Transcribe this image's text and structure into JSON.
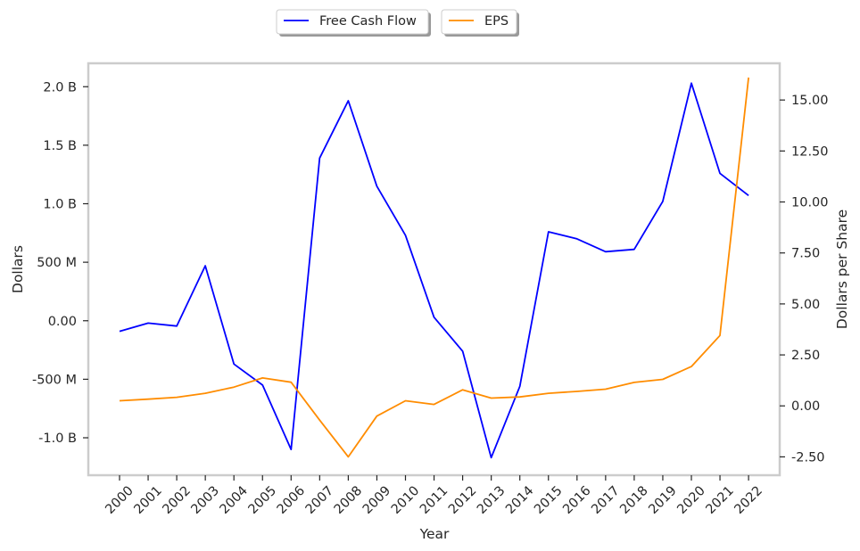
{
  "chart_data": {
    "type": "line",
    "x": [
      "2000",
      "2001",
      "2002",
      "2003",
      "2004",
      "2005",
      "2006",
      "2007",
      "2008",
      "2009",
      "2010",
      "2011",
      "2012",
      "2013",
      "2014",
      "2015",
      "2016",
      "2017",
      "2018",
      "2019",
      "2020",
      "2021",
      "2022"
    ],
    "xlabel": "Year",
    "ylabel_left": "Dollars",
    "ylabel_right": "Dollars per Share",
    "y_left_ticks": [
      {
        "value": -1000000000,
        "label": "-1.0 B"
      },
      {
        "value": -500000000,
        "label": "-500 M"
      },
      {
        "value": 0,
        "label": "0.00"
      },
      {
        "value": 500000000,
        "label": "500 M"
      },
      {
        "value": 1000000000,
        "label": "1.0 B"
      },
      {
        "value": 1500000000,
        "label": "1.5 B"
      },
      {
        "value": 2000000000,
        "label": "2.0 B"
      }
    ],
    "y_right_ticks": [
      {
        "value": -2.5,
        "label": "-2.50"
      },
      {
        "value": 0,
        "label": "0.00"
      },
      {
        "value": 2.5,
        "label": "2.50"
      },
      {
        "value": 5,
        "label": "5.00"
      },
      {
        "value": 7.5,
        "label": "7.50"
      },
      {
        "value": 10,
        "label": "10.00"
      },
      {
        "value": 12.5,
        "label": "12.50"
      },
      {
        "value": 15,
        "label": "15.00"
      }
    ],
    "ylim_left": [
      -1320000000,
      2200000000
    ],
    "ylim_right": [
      -3.4,
      16.8
    ],
    "legend_position": "top-center",
    "grid": false,
    "series": [
      {
        "name": "Free Cash Flow",
        "axis": "left",
        "color": "#0000ff",
        "values": [
          -90000000,
          -20000000,
          -45000000,
          470000000,
          -370000000,
          -550000000,
          -1100000000,
          1390000000,
          1880000000,
          1150000000,
          730000000,
          30000000,
          -260000000,
          -1170000000,
          -560000000,
          760000000,
          700000000,
          590000000,
          610000000,
          1020000000,
          2030000000,
          1260000000,
          1070000000
        ]
      },
      {
        "name": "EPS",
        "axis": "right",
        "color": "#ff8c00",
        "values": [
          0.25,
          0.33,
          0.42,
          0.62,
          0.92,
          1.37,
          1.16,
          -0.7,
          -2.5,
          -0.5,
          0.25,
          0.07,
          0.79,
          0.38,
          0.44,
          0.62,
          0.71,
          0.82,
          1.15,
          1.3,
          1.93,
          3.45,
          16.1
        ]
      }
    ]
  }
}
